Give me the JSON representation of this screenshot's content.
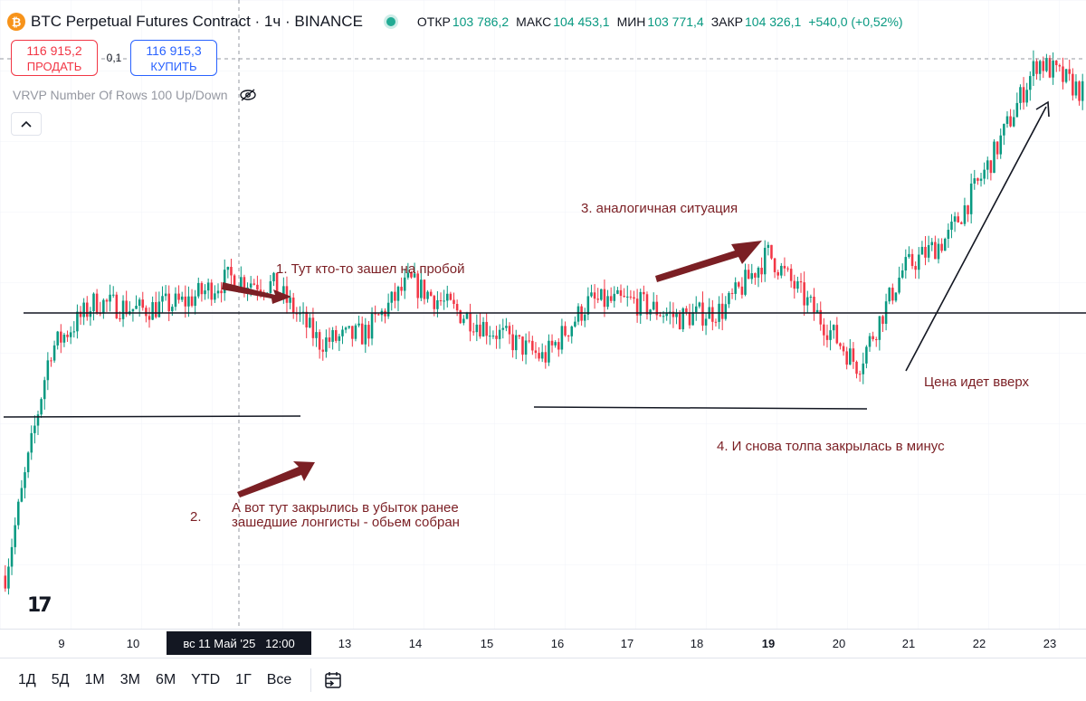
{
  "header": {
    "coin_symbol": "₿",
    "title": "BTC Perpetual Futures Contract · 1ч · BINANCE",
    "ohlc": {
      "open_label": "ОТКР",
      "open_value": "103 786,2",
      "high_label": "МАКС",
      "high_value": "104 453,1",
      "low_label": "МИН",
      "low_value": "103 771,4",
      "close_label": "ЗАКР",
      "close_value": "104 326,1",
      "change": "+540,0 (+0,52%)"
    }
  },
  "trade": {
    "sell_price": "116 915,2",
    "sell_label": "ПРОДАТЬ",
    "spread": "0,1",
    "buy_price": "116 915,3",
    "buy_label": "КУПИТЬ"
  },
  "indicator": {
    "label": "VRVP Number Of Rows 100 Up/Down"
  },
  "annotations": {
    "a1": "1. Тут кто-то зашел на пробой",
    "a2_num": "2.",
    "a2_line1": "А вот тут закрылись в убыток ранее",
    "a2_line2": "зашедшие лонгисты - обьем собран",
    "a3": "3. аналогичная ситуация",
    "a4": "4. И снова толпа закрылась в минус",
    "a5": "Цена идет вверх"
  },
  "time_axis": {
    "ticks": [
      "9",
      "10",
      "13",
      "14",
      "15",
      "16",
      "17",
      "18",
      "19",
      "20",
      "21",
      "22",
      "23"
    ],
    "crosshair_label": "вс 11 Май '25   12:00"
  },
  "bottom_bar": {
    "periods": [
      "1Д",
      "5Д",
      "1М",
      "3М",
      "6М",
      "YTD",
      "1Г",
      "Все"
    ]
  },
  "colors": {
    "up": "#089981",
    "down": "#f23645",
    "annotation": "#7b1f24",
    "sell": "#f23645",
    "buy": "#2962ff"
  },
  "icons": [
    "bitcoin-icon",
    "status-dot-icon",
    "eye-off-icon",
    "chevron-up-icon",
    "tradingview-logo",
    "goto-date-icon"
  ],
  "chart_data": {
    "type": "candlestick",
    "title": "BTC Perpetual Futures Contract · 1ч · BINANCE",
    "x": [
      "9",
      "10",
      "13",
      "14",
      "15",
      "16",
      "17",
      "18",
      "19",
      "20",
      "21",
      "22",
      "23"
    ],
    "price_path": [
      [
        0,
        100000
      ],
      [
        1,
        102800
      ],
      [
        2,
        103400
      ],
      [
        3,
        103300
      ],
      [
        4,
        103400
      ],
      [
        5,
        103700
      ],
      [
        6,
        103600
      ],
      [
        7,
        102900
      ],
      [
        8,
        103000
      ],
      [
        9,
        103650
      ],
      [
        10,
        103300
      ],
      [
        11,
        103000
      ],
      [
        12,
        102700
      ],
      [
        13,
        103400
      ],
      [
        14,
        103400
      ],
      [
        15,
        103200
      ],
      [
        16,
        103300
      ],
      [
        17,
        104000
      ],
      [
        18,
        103300
      ],
      [
        19,
        102600
      ],
      [
        20,
        103800
      ],
      [
        21,
        104200
      ],
      [
        22,
        105200
      ],
      [
        23,
        106400
      ],
      [
        24,
        106000
      ]
    ]
  }
}
